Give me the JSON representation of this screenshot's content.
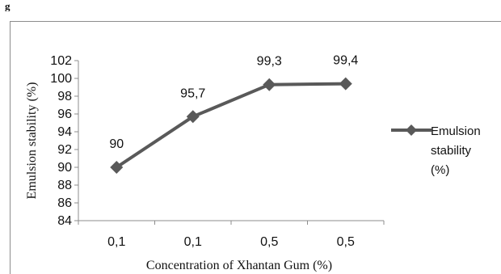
{
  "header_fragment": "g",
  "chart_data": {
    "type": "line",
    "categories": [
      "0,1",
      "0,1",
      "0,5",
      "0,5"
    ],
    "series": [
      {
        "name": "Emulsion stability (%)",
        "legend_lines": [
          "Emulsion",
          "stability",
          "(%)"
        ],
        "values": [
          90,
          95.7,
          99.3,
          99.4
        ],
        "data_labels": [
          "90",
          "95,7",
          "99,3",
          "99,4"
        ],
        "color": "#595959"
      }
    ],
    "xlabel": "Concentration of Xhantan Gum (%)",
    "ylabel": "Emulsion stability  (%)",
    "ylim": [
      84,
      102
    ],
    "yticks": [
      84,
      86,
      88,
      90,
      92,
      94,
      96,
      98,
      100,
      102
    ],
    "grid": false,
    "legend_position": "right",
    "marker": "diamond"
  }
}
